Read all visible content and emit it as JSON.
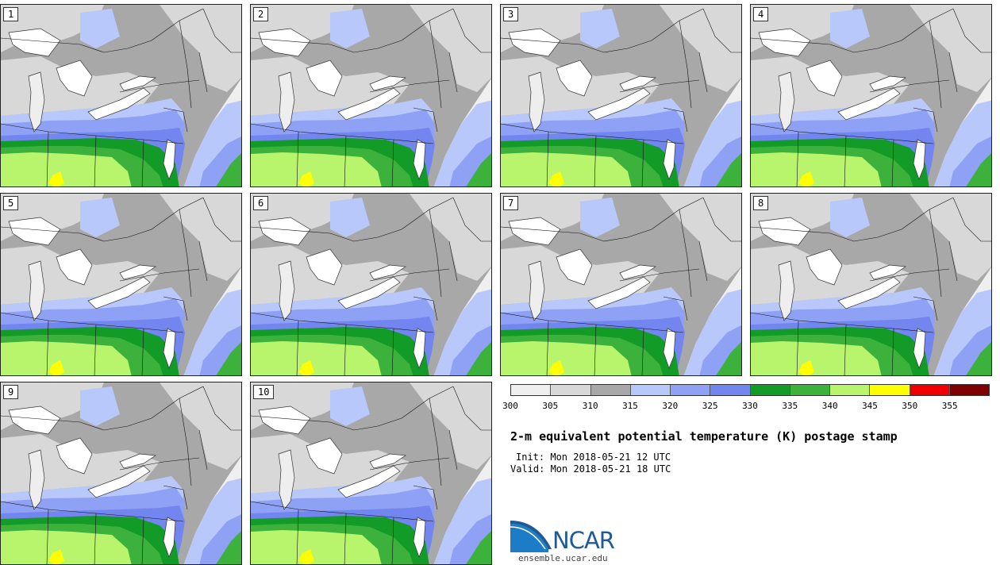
{
  "panels": [
    {
      "label": "1"
    },
    {
      "label": "2"
    },
    {
      "label": "3"
    },
    {
      "label": "4"
    },
    {
      "label": "5"
    },
    {
      "label": "6"
    },
    {
      "label": "7"
    },
    {
      "label": "8"
    },
    {
      "label": "9"
    },
    {
      "label": "10"
    }
  ],
  "colorbar": {
    "ticks": [
      "300",
      "305",
      "310",
      "315",
      "320",
      "325",
      "330",
      "335",
      "340",
      "345",
      "350",
      "355"
    ],
    "colors": [
      "#efefef",
      "#d8d8d8",
      "#a8a8a8",
      "#b9c8fb",
      "#8fa1f5",
      "#7385ee",
      "#129b27",
      "#3cb23c",
      "#b8f56d",
      "#ffff00",
      "#f00000",
      "#800000"
    ]
  },
  "title": "2-m equivalent potential temperature (K) postage stamp",
  "init": "Init: Mon 2018-05-21 12 UTC",
  "valid": "Valid: Mon 2018-05-21 18 UTC",
  "logo": {
    "text": "NCAR",
    "url": "ensemble.ucar.edu"
  }
}
